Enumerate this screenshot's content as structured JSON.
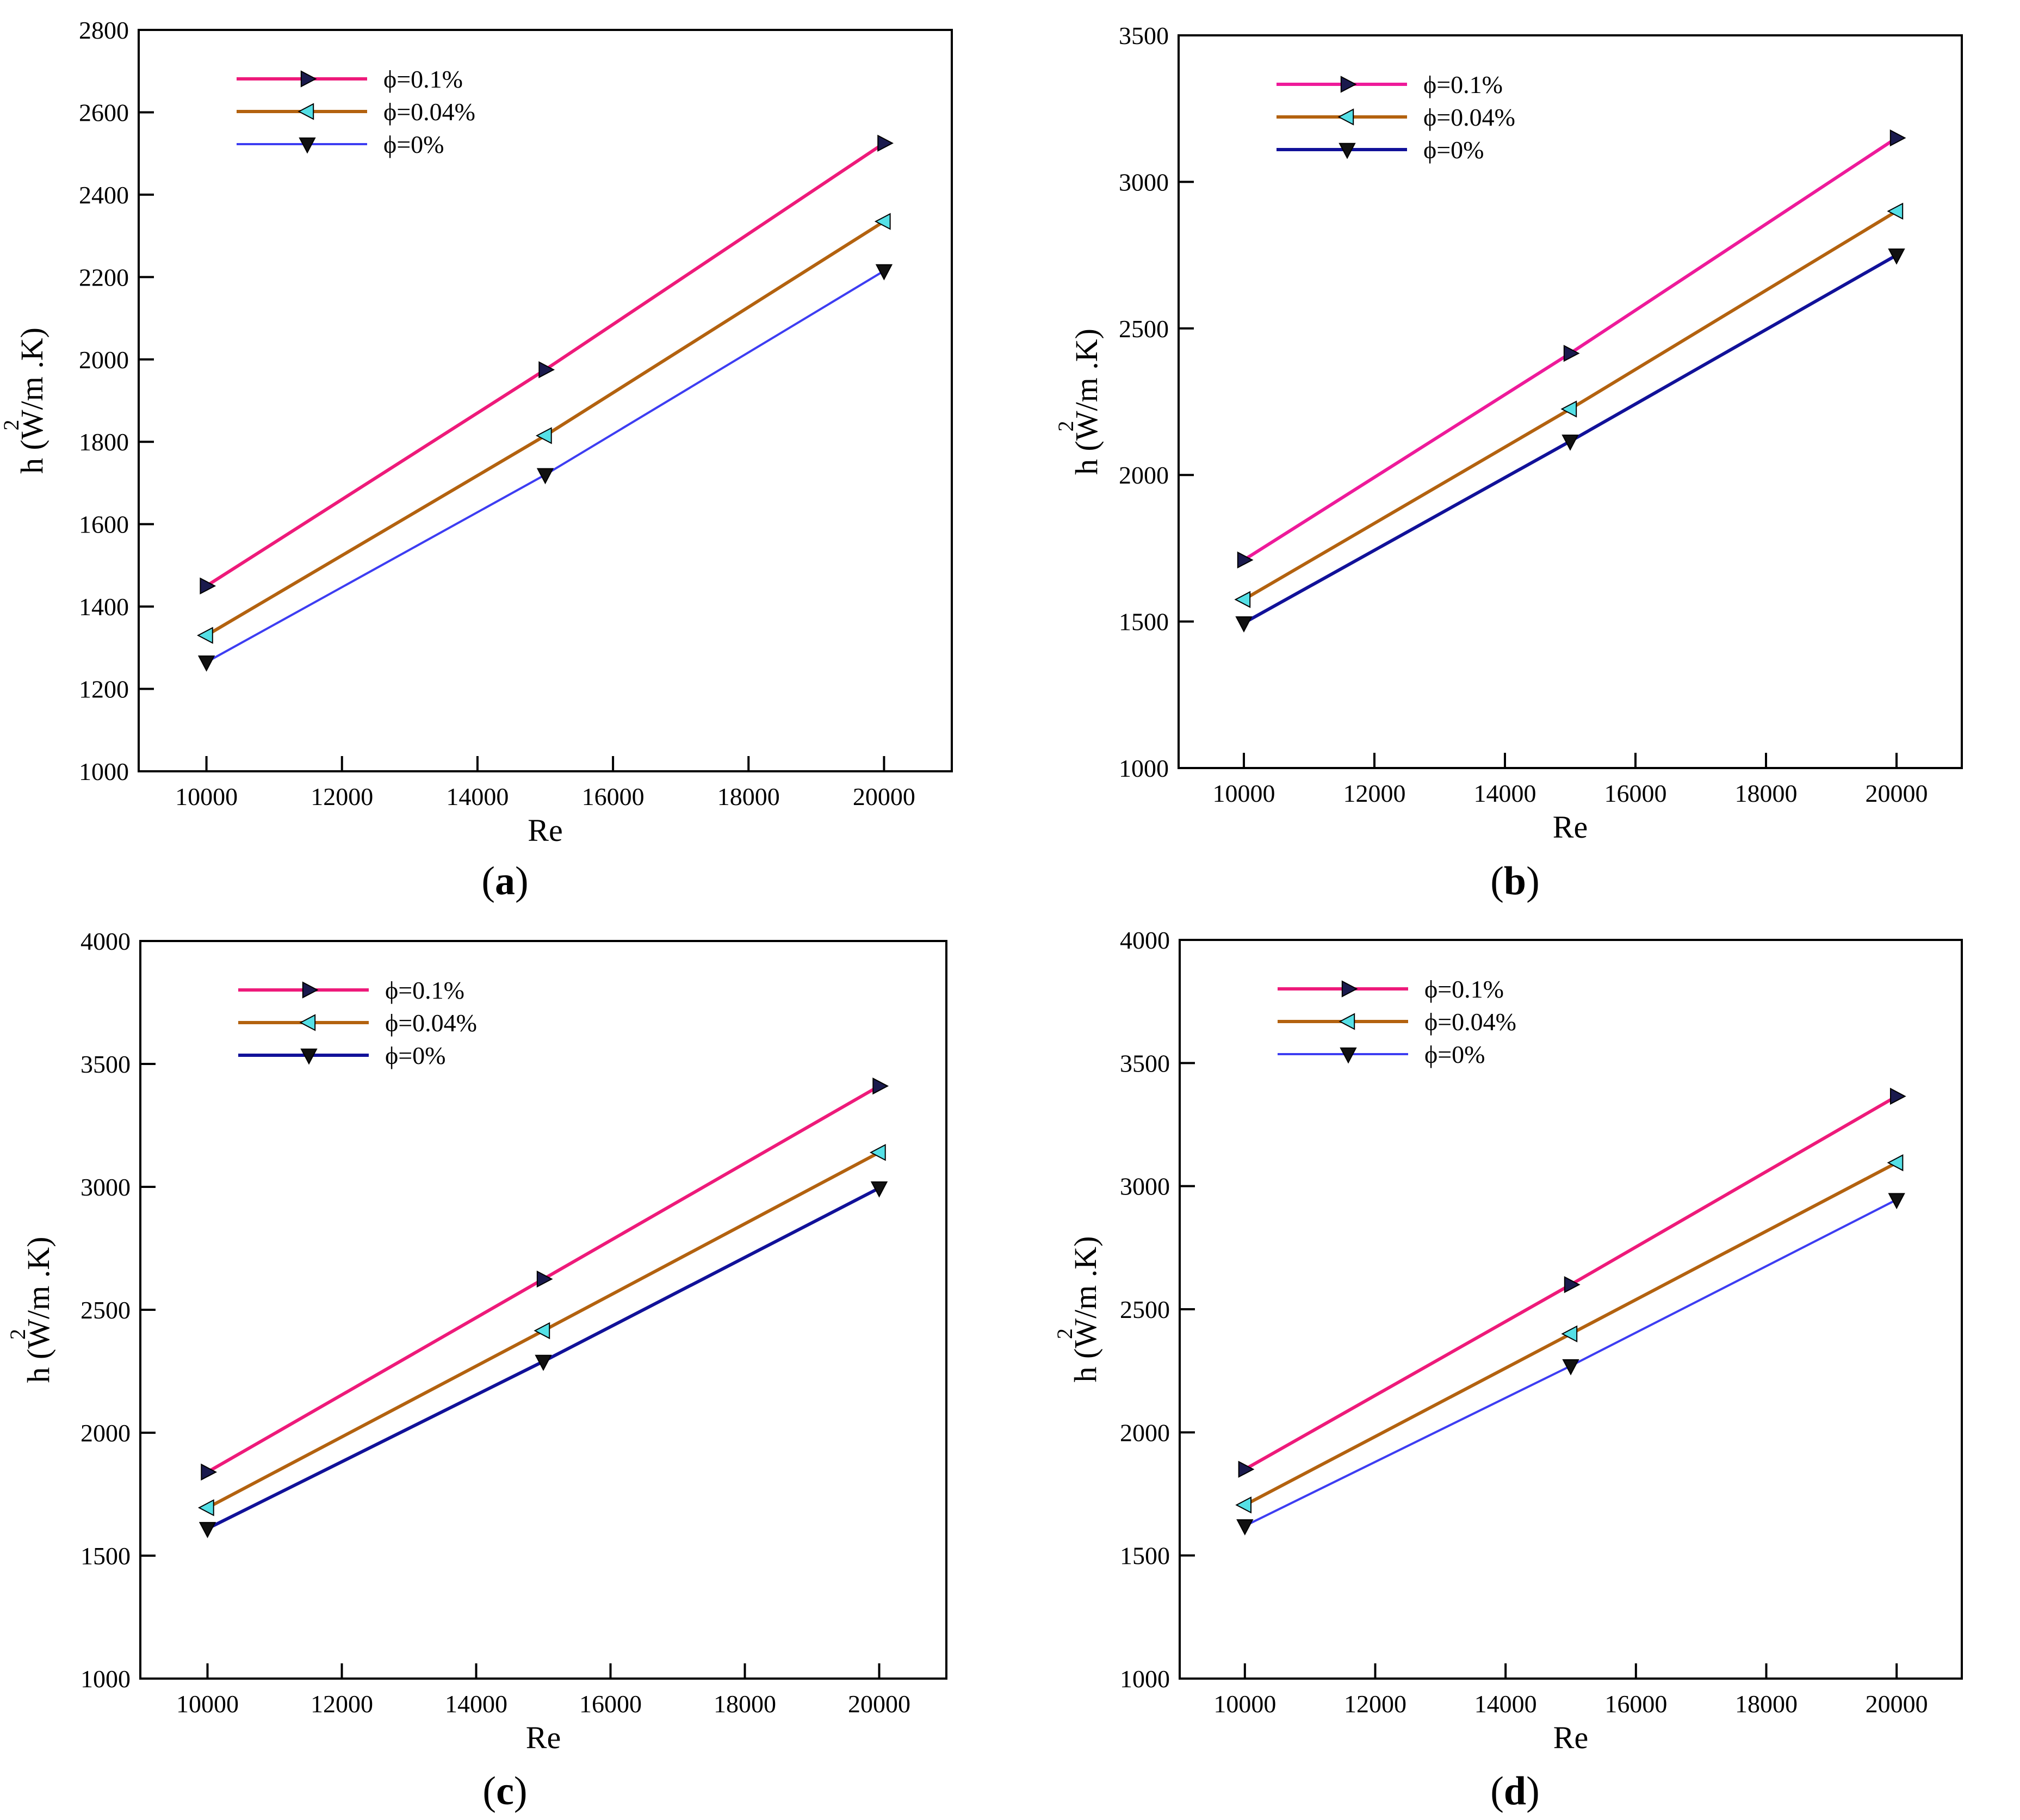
{
  "chart_data": [
    {
      "panel": "a",
      "type": "line",
      "xlabel": "Re",
      "ylabel": "h (W/m  .K)",
      "ylabel_sup": "2",
      "x": [
        10000,
        15000,
        20000
      ],
      "xlim": [
        9000,
        21000
      ],
      "ylim": [
        1000,
        2800
      ],
      "xticks": [
        10000,
        12000,
        14000,
        16000,
        18000,
        20000
      ],
      "yticks": [
        1000,
        1200,
        1400,
        1600,
        1800,
        2000,
        2200,
        2400,
        2600,
        2800
      ],
      "legend_position": "top-left",
      "series": [
        {
          "name": "ϕ=0.1%",
          "values": [
            1450,
            1975,
            2525
          ],
          "color": "#ee1a7a",
          "marker": "triangle-right"
        },
        {
          "name": "ϕ=0.04%",
          "values": [
            1330,
            1815,
            2335
          ],
          "color": "#b3620f",
          "marker": "triangle-left"
        },
        {
          "name": "ϕ=0%",
          "values": [
            1265,
            1720,
            2215
          ],
          "color": "#3d3df2",
          "marker": "triangle-down"
        }
      ]
    },
    {
      "panel": "b",
      "type": "line",
      "xlabel": "Re",
      "ylabel": "h (W/m  .K)",
      "ylabel_sup": "2",
      "x": [
        10000,
        15000,
        20000
      ],
      "xlim": [
        9000,
        21000
      ],
      "ylim": [
        1000,
        3500
      ],
      "xticks": [
        10000,
        12000,
        14000,
        16000,
        18000,
        20000
      ],
      "yticks": [
        1000,
        1500,
        2000,
        2500,
        3000,
        3500
      ],
      "legend_position": "top-left",
      "series": [
        {
          "name": "ϕ=0.1%",
          "values": [
            1710,
            2415,
            3150
          ],
          "color": "#ee1a9a",
          "marker": "triangle-right"
        },
        {
          "name": "ϕ=0.04%",
          "values": [
            1575,
            2225,
            2900
          ],
          "color": "#b3620f",
          "marker": "triangle-left"
        },
        {
          "name": "ϕ=0%",
          "values": [
            1495,
            2115,
            2750
          ],
          "color": "#111199",
          "marker": "triangle-down"
        }
      ]
    },
    {
      "panel": "c",
      "type": "line",
      "xlabel": "Re",
      "ylabel": "h (W/m  .K)",
      "ylabel_sup": "2",
      "x": [
        10000,
        15000,
        20000
      ],
      "xlim": [
        9000,
        21000
      ],
      "ylim": [
        1000,
        4000
      ],
      "xticks": [
        10000,
        12000,
        14000,
        16000,
        18000,
        20000
      ],
      "yticks": [
        1000,
        1500,
        2000,
        2500,
        3000,
        3500,
        4000
      ],
      "legend_position": "top-left",
      "series": [
        {
          "name": "ϕ=0.1%",
          "values": [
            1840,
            2625,
            3410
          ],
          "color": "#ee1a7a",
          "marker": "triangle-right"
        },
        {
          "name": "ϕ=0.04%",
          "values": [
            1695,
            2415,
            3140
          ],
          "color": "#b3620f",
          "marker": "triangle-left"
        },
        {
          "name": "ϕ=0%",
          "values": [
            1610,
            2290,
            2995
          ],
          "color": "#111199",
          "marker": "triangle-down"
        }
      ]
    },
    {
      "panel": "d",
      "type": "line",
      "xlabel": "Re",
      "ylabel": "h (W/m  .K)",
      "ylabel_sup": "2",
      "x": [
        10000,
        15000,
        20000
      ],
      "xlim": [
        9000,
        21000
      ],
      "ylim": [
        1000,
        4000
      ],
      "xticks": [
        10000,
        12000,
        14000,
        16000,
        18000,
        20000
      ],
      "yticks": [
        1000,
        1500,
        2000,
        2500,
        3000,
        3500,
        4000
      ],
      "legend_position": "top-left",
      "series": [
        {
          "name": "ϕ=0.1%",
          "values": [
            1850,
            2600,
            3365
          ],
          "color": "#ee1a7a",
          "marker": "triangle-right"
        },
        {
          "name": "ϕ=0.04%",
          "values": [
            1705,
            2400,
            3095
          ],
          "color": "#b3620f",
          "marker": "triangle-left"
        },
        {
          "name": "ϕ=0%",
          "values": [
            1620,
            2270,
            2945
          ],
          "color": "#3d3df2",
          "marker": "triangle-down"
        }
      ]
    }
  ],
  "captions": {
    "a": {
      "open": "(",
      "letter": "a",
      "close": ")"
    },
    "b": {
      "open": "(",
      "letter": "b",
      "close": ")"
    },
    "c": {
      "open": "(",
      "letter": "c",
      "close": ")"
    },
    "d": {
      "open": "(",
      "letter": "d",
      "close": ")"
    }
  },
  "colors": {
    "marker_fill_right": "#1a1a4d",
    "marker_fill_left": "#55e0e6",
    "marker_fill_down": "#111111",
    "axis": "#000000"
  }
}
